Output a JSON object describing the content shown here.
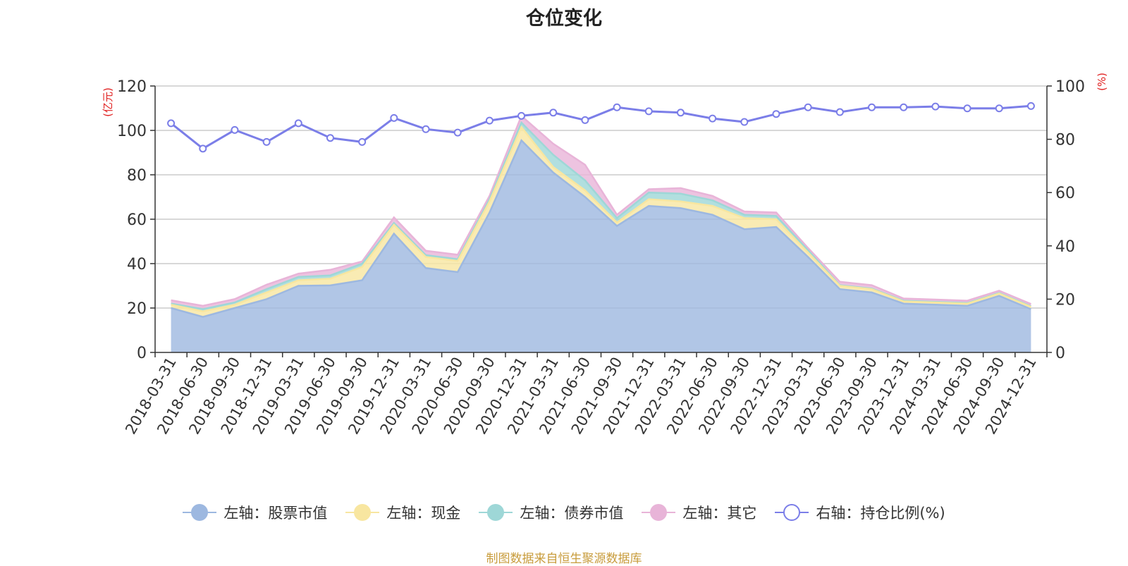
{
  "chart_data": {
    "type": "area",
    "title": "仓位变化",
    "stacked": true,
    "categories": [
      "2018-03-31",
      "2018-06-30",
      "2018-09-30",
      "2018-12-31",
      "2019-03-31",
      "2019-06-30",
      "2019-09-30",
      "2019-12-31",
      "2020-03-31",
      "2020-06-30",
      "2020-09-30",
      "2020-12-31",
      "2021-03-31",
      "2021-06-30",
      "2021-09-30",
      "2021-12-31",
      "2022-03-31",
      "2022-06-30",
      "2022-09-30",
      "2022-12-31",
      "2023-03-31",
      "2023-06-30",
      "2023-09-30",
      "2023-12-31",
      "2024-03-31",
      "2024-06-30",
      "2024-09-30",
      "2024-12-31"
    ],
    "y_left": {
      "unit_label": "(亿元)",
      "ylim": [
        0,
        120
      ],
      "ticks": [
        "0",
        "20",
        "40",
        "60",
        "80",
        "100",
        "120"
      ]
    },
    "y_right": {
      "unit_label": "(%)",
      "ylim": [
        0,
        100
      ],
      "ticks": [
        "0",
        "20",
        "40",
        "60",
        "80",
        "100"
      ]
    },
    "series": [
      {
        "name": "左轴：股票市值",
        "axis": "left",
        "color": "#9db8e0",
        "values": [
          20.0,
          16.0,
          20.0,
          24.0,
          30.0,
          30.2,
          32.5,
          53.5,
          38.0,
          36.2,
          63.0,
          95.5,
          81.0,
          70.0,
          57.0,
          66.0,
          65.0,
          62.0,
          55.5,
          56.5,
          43.0,
          28.5,
          27.0,
          22.0,
          21.5,
          21.0,
          25.5,
          19.5
        ]
      },
      {
        "name": "左轴：现金",
        "axis": "left",
        "color": "#f8e6a0",
        "values": [
          1.5,
          2.5,
          1.5,
          3.0,
          2.5,
          3.0,
          6.0,
          4.0,
          5.0,
          5.0,
          5.0,
          6.0,
          2.5,
          3.0,
          1.5,
          3.0,
          3.0,
          4.0,
          5.0,
          3.5,
          2.0,
          1.5,
          1.5,
          1.0,
          1.0,
          1.0,
          1.0,
          1.0
        ]
      },
      {
        "name": "左轴：债券市值",
        "axis": "left",
        "color": "#9ed7d7",
        "values": [
          0.5,
          1.0,
          1.0,
          1.5,
          1.5,
          1.5,
          1.5,
          0.8,
          0.8,
          0.8,
          1.0,
          2.0,
          5.5,
          4.5,
          2.0,
          3.0,
          3.5,
          2.5,
          1.5,
          1.5,
          1.0,
          0.3,
          0.3,
          0.3,
          0.3,
          0.3,
          0.3,
          0.3
        ]
      },
      {
        "name": "左轴：其它",
        "axis": "left",
        "color": "#e8b4d8",
        "values": [
          1.5,
          1.5,
          1.5,
          2.0,
          1.5,
          2.5,
          1.0,
          2.5,
          2.0,
          2.0,
          1.5,
          3.0,
          5.0,
          7.0,
          1.5,
          1.5,
          2.5,
          2.0,
          1.5,
          1.5,
          1.0,
          1.5,
          1.5,
          1.0,
          1.0,
          1.0,
          1.0,
          1.0
        ]
      },
      {
        "name": "右轴：持仓比例(%)",
        "axis": "right",
        "color": "#7b7ee8",
        "values": [
          86.0,
          76.5,
          83.5,
          79.0,
          86.0,
          80.5,
          79.0,
          88.0,
          83.8,
          82.5,
          87.0,
          88.8,
          90.0,
          87.2,
          92.0,
          90.5,
          90.0,
          87.8,
          86.5,
          89.5,
          92.0,
          90.2,
          92.0,
          92.0,
          92.3,
          91.6,
          91.6,
          92.5
        ]
      }
    ],
    "legend_position": "bottom",
    "grid": true
  },
  "colors": {
    "grid": "#cccccc",
    "axis": "#333333",
    "unit_label": "#e02020"
  },
  "legend": [
    {
      "label": "左轴：股票市值",
      "color": "#9db8e0",
      "style": "filled"
    },
    {
      "label": "左轴：现金",
      "color": "#f8e6a0",
      "style": "filled"
    },
    {
      "label": "左轴：债券市值",
      "color": "#9ed7d7",
      "style": "filled"
    },
    {
      "label": "左轴：其它",
      "color": "#e8b4d8",
      "style": "filled"
    },
    {
      "label": "右轴：持仓比例(%)",
      "color": "#7b7ee8",
      "style": "hollow"
    }
  ],
  "source_note": "制图数据来自恒生聚源数据库"
}
